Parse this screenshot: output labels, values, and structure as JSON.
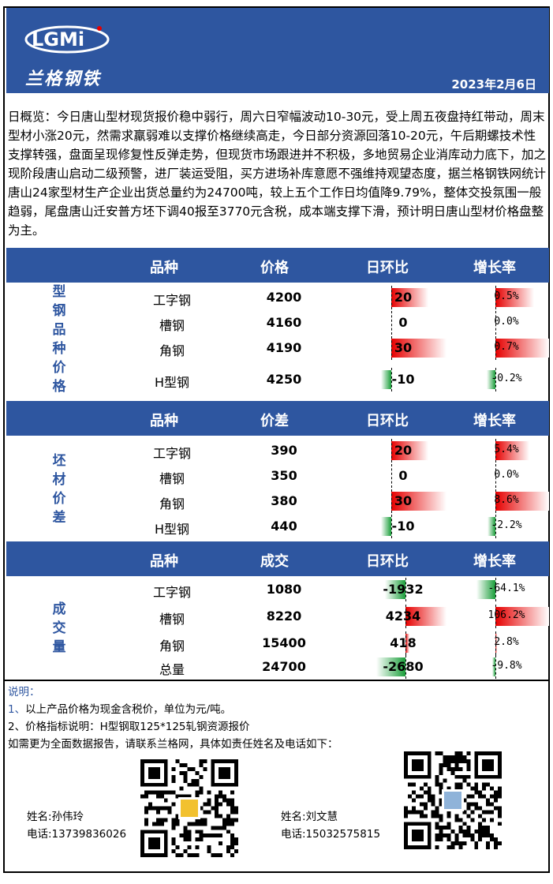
{
  "header": {
    "logo_mark": "LGMi",
    "logo_text": "兰格钢铁",
    "date": "2023年2月6日"
  },
  "summary": "日概览：今日唐山型材现货报价稳中弱行，周六日窄幅波动10-30元，受上周五夜盘持红带动，周末型材小涨20元，然需求羸弱难以支撑价格继续高走，今日部分资源回落10-20元，午后期螺技术性支撑转强，盘面呈现修复性反弹走势，但现货市场跟进并不积极，多地贸易企业消库动力底下，加之现阶段唐山启动二级预警，进厂装运受阻，买方进场补库意愿不强维持观望态度，据兰格钢铁网统计唐山24家型材生产企业出货总量约为24700吨，较上五个工作日均值降9.79%，整体交投氛围一般趋弱，尾盘唐山迁安普方坯下调40报至3770元含税，成本端支撑下滑，预计明日唐山型材价格盘整为主。",
  "sections": [
    {
      "label": "型钢品种价格",
      "headers": [
        "品种",
        "价格",
        "日环比",
        "增长率"
      ],
      "rows": [
        {
          "name": "工字钢",
          "value": "4200",
          "change": "20",
          "change_num": 20,
          "rate": "0.5%",
          "rate_num": 0.5
        },
        {
          "name": "槽钢",
          "value": "4160",
          "change": "0",
          "change_num": 0,
          "rate": "0.0%",
          "rate_num": 0.0
        },
        {
          "name": "角钢",
          "value": "4190",
          "change": "30",
          "change_num": 30,
          "rate": "0.7%",
          "rate_num": 0.7
        },
        {
          "name": "H型钢",
          "value": "4250",
          "change": "-10",
          "change_num": -10,
          "rate": "-0.2%",
          "rate_num": -0.2
        }
      ]
    },
    {
      "label": "坯材价差",
      "headers": [
        "品种",
        "价差",
        "日环比",
        "增长率"
      ],
      "rows": [
        {
          "name": "工字钢",
          "value": "390",
          "change": "20",
          "change_num": 20,
          "rate": "5.4%",
          "rate_num": 5.4
        },
        {
          "name": "槽钢",
          "value": "350",
          "change": "0",
          "change_num": 0,
          "rate": "0.0%",
          "rate_num": 0.0
        },
        {
          "name": "角钢",
          "value": "380",
          "change": "30",
          "change_num": 30,
          "rate": "8.6%",
          "rate_num": 8.6
        },
        {
          "name": "H型钢",
          "value": "440",
          "change": "-10",
          "change_num": -10,
          "rate": "-2.2%",
          "rate_num": -2.2
        }
      ]
    },
    {
      "label": "成交量",
      "headers": [
        "品种",
        "成交",
        "日环比",
        "增长率"
      ],
      "rows": [
        {
          "name": "工字钢",
          "value": "1080",
          "change": "-1932",
          "change_num": -1932,
          "rate": "-64.1%",
          "rate_num": -64.1
        },
        {
          "name": "槽钢",
          "value": "8220",
          "change": "4234",
          "change_num": 4234,
          "rate": "106.2%",
          "rate_num": 106.2
        },
        {
          "name": "角钢",
          "value": "15400",
          "change": "418",
          "change_num": 418,
          "rate": "2.8%",
          "rate_num": 2.8
        },
        {
          "name": "总量",
          "value": "24700",
          "change": "-2680",
          "change_num": -2680,
          "rate": "-9.8%",
          "rate_num": -9.8
        }
      ]
    }
  ],
  "notes": {
    "title": "说明：",
    "line1": "1、以上产品价格为现金含税价，单位为元/吨。",
    "line2": "2、价格指标说明：H型钢取125*125轧钢资源报价",
    "line3": "如需更为全面数据报告，请联系兰格网，具体如责任姓名及电话如下："
  },
  "contacts": [
    {
      "name": "姓名:孙伟玲",
      "phone": "电话:13739836026"
    },
    {
      "name": "姓名:刘文慧",
      "phone": "电话:15032575815"
    }
  ],
  "colors": {
    "header_blue": "#2e56a0",
    "up_red": "#e60000",
    "down_green": "#1a9e3a"
  }
}
